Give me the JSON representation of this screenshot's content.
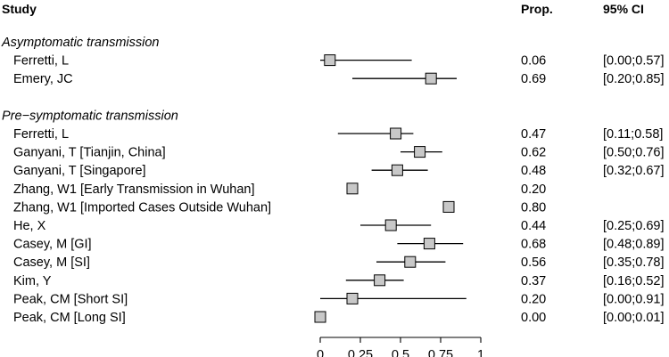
{
  "chart_data": {
    "type": "forest",
    "headers": {
      "study": "Study",
      "prop": "Prop.",
      "ci": "95% CI"
    },
    "xlim": [
      0,
      1
    ],
    "ticks": [
      {
        "value": 0,
        "label": "0"
      },
      {
        "value": 0.25,
        "label": "0.25"
      },
      {
        "value": 0.5,
        "label": "0.5"
      },
      {
        "value": 0.75,
        "label": "0.75"
      },
      {
        "value": 1,
        "label": "1"
      }
    ],
    "rows": [
      {
        "kind": "group",
        "label": "Asymptomatic transmission"
      },
      {
        "kind": "study",
        "label": "Ferretti, L",
        "prop": 0.06,
        "lo": 0.0,
        "hi": 0.57,
        "prop_text": "0.06",
        "ci_text": "[0.00;0.57]",
        "weight": 1
      },
      {
        "kind": "study",
        "label": "Emery, JC",
        "prop": 0.69,
        "lo": 0.2,
        "hi": 0.85,
        "prop_text": "0.69",
        "ci_text": "[0.20;0.85]",
        "weight": 1
      },
      {
        "kind": "spacer"
      },
      {
        "kind": "group",
        "label": "Pre−symptomatic transmission"
      },
      {
        "kind": "study",
        "label": "Ferretti, L",
        "prop": 0.47,
        "lo": 0.11,
        "hi": 0.58,
        "prop_text": "0.47",
        "ci_text": "[0.11;0.58]",
        "weight": 1
      },
      {
        "kind": "study",
        "label": "Ganyani, T [Tianjin, China]",
        "prop": 0.62,
        "lo": 0.5,
        "hi": 0.76,
        "prop_text": "0.62",
        "ci_text": "[0.50;0.76]",
        "weight": 1
      },
      {
        "kind": "study",
        "label": "Ganyani, T [Singapore]",
        "prop": 0.48,
        "lo": 0.32,
        "hi": 0.67,
        "prop_text": "0.48",
        "ci_text": "[0.32;0.67]",
        "weight": 1
      },
      {
        "kind": "study",
        "label": "Zhang, W1 [Early Transmission in Wuhan]",
        "prop": 0.2,
        "lo": null,
        "hi": null,
        "prop_text": "0.20",
        "ci_text": "",
        "weight": 1
      },
      {
        "kind": "study",
        "label": "Zhang, W1 [Imported Cases Outside Wuhan]",
        "prop": 0.8,
        "lo": null,
        "hi": null,
        "prop_text": "0.80",
        "ci_text": "",
        "weight": 1
      },
      {
        "kind": "study",
        "label": "He, X",
        "prop": 0.44,
        "lo": 0.25,
        "hi": 0.69,
        "prop_text": "0.44",
        "ci_text": "[0.25;0.69]",
        "weight": 1
      },
      {
        "kind": "study",
        "label": "Casey, M [GI]",
        "prop": 0.68,
        "lo": 0.48,
        "hi": 0.89,
        "prop_text": "0.68",
        "ci_text": "[0.48;0.89]",
        "weight": 1
      },
      {
        "kind": "study",
        "label": "Casey, M [SI]",
        "prop": 0.56,
        "lo": 0.35,
        "hi": 0.78,
        "prop_text": "0.56",
        "ci_text": "[0.35;0.78]",
        "weight": 1
      },
      {
        "kind": "study",
        "label": "Kim, Y",
        "prop": 0.37,
        "lo": 0.16,
        "hi": 0.52,
        "prop_text": "0.37",
        "ci_text": "[0.16;0.52]",
        "weight": 1
      },
      {
        "kind": "study",
        "label": "Peak, CM [Short SI]",
        "prop": 0.2,
        "lo": 0.0,
        "hi": 0.91,
        "prop_text": "0.20",
        "ci_text": "[0.00;0.91]",
        "weight": 1
      },
      {
        "kind": "study",
        "label": "Peak, CM [Long SI]",
        "prop": 0.0,
        "lo": 0.0,
        "hi": 0.01,
        "prop_text": "0.00",
        "ci_text": "[0.00;0.01]",
        "weight": 1
      }
    ],
    "colors": {
      "box_fill": "#c8c8c8",
      "stroke": "#000000"
    }
  }
}
